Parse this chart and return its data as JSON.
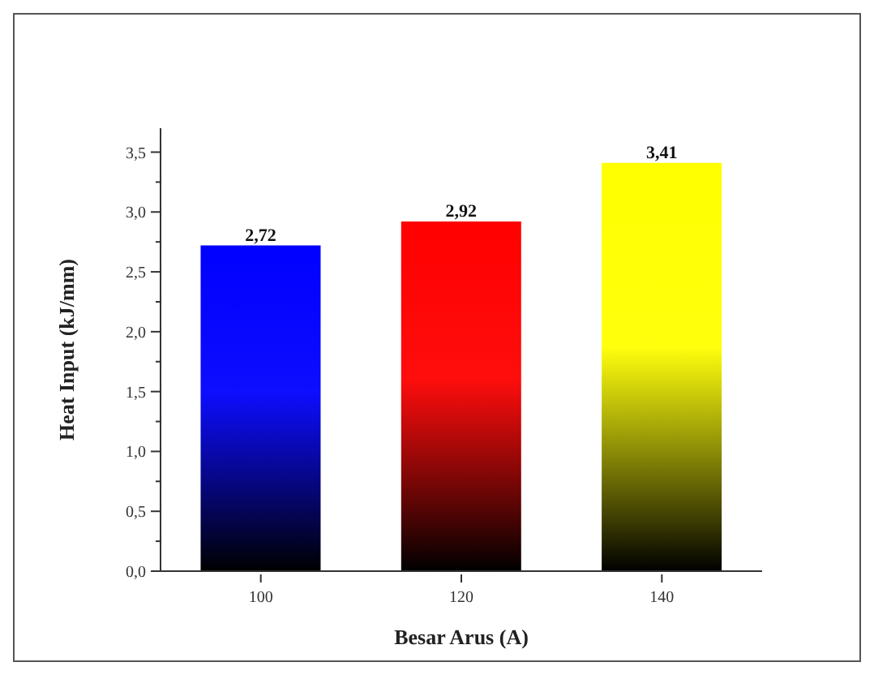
{
  "chart_data": {
    "type": "bar",
    "xlabel": "Besar Arus (A)",
    "ylabel": "Heat Input (kJ/mm)",
    "categories": [
      "100",
      "120",
      "140"
    ],
    "values": [
      2.72,
      2.92,
      3.41
    ],
    "colors": [
      "#0000ff",
      "#ff0000",
      "#ffff00"
    ],
    "value_labels": [
      "2,72",
      "2,92",
      "3,41"
    ],
    "ylim": [
      0,
      3.7
    ],
    "yticks": [
      {
        "value": 0,
        "label": "0,0"
      },
      {
        "value": 0.25,
        "label": null
      },
      {
        "value": 0.5,
        "label": "0,5"
      },
      {
        "value": 0.75,
        "label": null
      },
      {
        "value": 1,
        "label": "1,0"
      },
      {
        "value": 1.25,
        "label": null
      },
      {
        "value": 1.5,
        "label": "1,5"
      },
      {
        "value": 1.75,
        "label": null
      },
      {
        "value": 2,
        "label": "2,0"
      },
      {
        "value": 2.25,
        "label": null
      },
      {
        "value": 2.5,
        "label": "2,5"
      },
      {
        "value": 2.75,
        "label": null
      },
      {
        "value": 3,
        "label": "3,0"
      },
      {
        "value": 3.25,
        "label": null
      },
      {
        "value": 3.5,
        "label": "3,5"
      }
    ],
    "grid": false,
    "legend": false
  }
}
